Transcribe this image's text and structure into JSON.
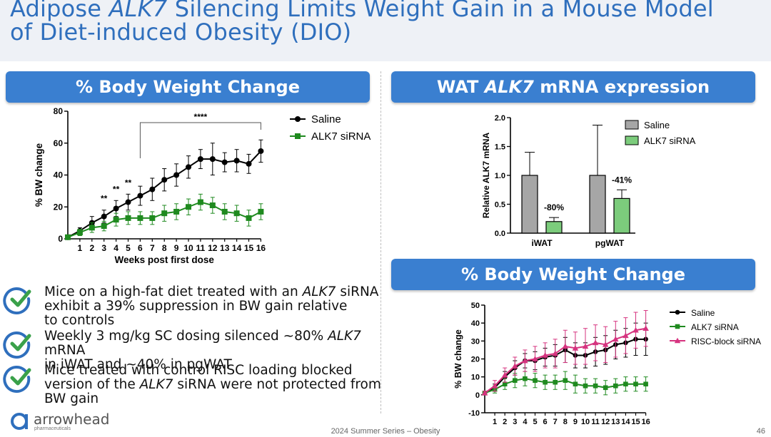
{
  "slide": {
    "title_part1": "Adipose ",
    "title_italic": "ALK7",
    "title_part2": " Silencing Limits Weight Gain in a Mouse Model",
    "title_line2": "of Diet-induced Obesity (DIO)",
    "footer": "2024 Summer Series – Obesity",
    "page_number": "46",
    "logo_text": "arrowhead",
    "logo_subtext": "pharmaceuticals",
    "accent_color": "#3a7fd0"
  },
  "banners": {
    "left": "% Body Weight Change",
    "right_top_part1": "WAT ",
    "right_top_italic": "ALK7",
    "right_top_part2": " mRNA expression",
    "right_bottom": "% Body Weight Change"
  },
  "bullets": [
    {
      "line1_part1": "Mice on a high-fat diet treated with an ",
      "line1_italic": "ALK7",
      "line1_part2": " siRNA",
      "line2": "exhibit a 39% suppression in BW gain relative",
      "line3": "to controls",
      "icon": "check-icon"
    },
    {
      "line1_part1": "Weekly 3 mg/kg SC dosing silenced ~80% ",
      "line1_italic": "ALK7",
      "line1_part2": " mRNA",
      "line2": "in iWAT and ~40% in pgWAT",
      "icon": "check-icon"
    },
    {
      "line1": "Mice treated with control RISC loading blocked",
      "line2_part1": "version of the ",
      "line2_italic": "ALK7",
      "line2_part2": " siRNA were not protected from",
      "line3": "BW gain",
      "icon": "check-icon"
    }
  ],
  "chart_data": [
    {
      "type": "line",
      "xlabel": "Weeks post first dose",
      "ylabel": "% BW change",
      "ylim": [
        0,
        80
      ],
      "yticks": [
        0,
        20,
        40,
        60,
        80
      ],
      "x": [
        0,
        1,
        2,
        3,
        4,
        5,
        6,
        7,
        8,
        9,
        10,
        11,
        12,
        13,
        14,
        15,
        16
      ],
      "xtick_labels": [
        "1",
        "2",
        "3",
        "4",
        "5",
        "6",
        "7",
        "8",
        "9",
        "10",
        "11",
        "12",
        "13",
        "14",
        "15",
        "16"
      ],
      "series": [
        {
          "name": "Saline",
          "color": "#000000",
          "marker": "circle",
          "values": [
            1,
            5,
            10,
            14,
            19,
            23,
            27,
            31,
            37,
            40,
            45,
            50,
            50,
            48,
            49,
            47,
            55
          ],
          "errors": [
            1,
            2,
            4,
            4,
            5,
            5,
            6,
            7,
            7,
            7,
            7,
            6,
            10,
            6,
            7,
            6,
            7
          ]
        },
        {
          "name": "ALK7 siRNA",
          "color": "#1f8a1f",
          "marker": "square",
          "values": [
            1,
            4,
            7,
            8,
            12,
            13,
            13,
            13,
            16,
            17,
            20,
            23,
            21,
            17,
            16,
            13,
            17
          ],
          "errors": [
            1,
            2,
            3,
            3,
            4,
            4,
            4,
            4,
            5,
            5,
            5,
            5,
            5,
            5,
            5,
            5,
            5
          ]
        }
      ],
      "annotations": [
        {
          "text": "**",
          "x": 3
        },
        {
          "text": "**",
          "x": 4
        },
        {
          "text": "**",
          "x": 5
        },
        {
          "text": "****",
          "x_from": 6,
          "x_to": 16
        }
      ],
      "legend": "top-right"
    },
    {
      "type": "bar",
      "categories": [
        "iWAT",
        "pgWAT"
      ],
      "ylabel": "Relative ALK7 mRNA",
      "ylim": [
        0,
        2.0
      ],
      "yticks": [
        "0.0",
        "0.5",
        "1.0",
        "1.5",
        "2.0"
      ],
      "series": [
        {
          "name": "Saline",
          "color": "#a6a6a6",
          "values": [
            1.0,
            1.0
          ],
          "errors": [
            0.4,
            0.87
          ]
        },
        {
          "name": "ALK7 siRNA",
          "color": "#7ccc7c",
          "values": [
            0.2,
            0.6
          ],
          "errors": [
            0.07,
            0.15
          ]
        }
      ],
      "bar_labels": [
        "-80%",
        "-41%"
      ],
      "legend": "top-right"
    },
    {
      "type": "line",
      "xlabel": "Weeks post first dose",
      "ylabel": "% BW change",
      "ylim": [
        -10,
        50
      ],
      "yticks": [
        -10,
        0,
        10,
        20,
        30,
        40,
        50
      ],
      "x": [
        0,
        1,
        2,
        3,
        4,
        5,
        6,
        7,
        8,
        9,
        10,
        11,
        12,
        13,
        14,
        15,
        16
      ],
      "xtick_labels": [
        "1",
        "2",
        "3",
        "4",
        "5",
        "6",
        "7",
        "8",
        "9",
        "10",
        "11",
        "12",
        "13",
        "14",
        "15",
        "16"
      ],
      "series": [
        {
          "name": "Saline",
          "color": "#000000",
          "marker": "circle",
          "values": [
            1,
            4,
            10,
            15,
            19,
            19,
            21,
            22,
            25,
            22,
            22,
            24,
            25,
            28,
            29,
            31,
            31
          ],
          "errors": [
            1,
            2,
            3,
            4,
            4,
            5,
            5,
            6,
            7,
            7,
            7,
            8,
            8,
            8,
            8,
            9,
            9
          ]
        },
        {
          "name": "ALK7 siRNA",
          "color": "#1f8a1f",
          "marker": "square",
          "values": [
            1,
            3,
            6,
            8,
            9,
            8,
            7,
            7,
            8,
            6,
            5,
            5,
            4,
            5,
            6,
            6,
            6
          ],
          "errors": [
            1,
            2,
            3,
            4,
            4,
            4,
            4,
            4,
            5,
            5,
            4,
            4,
            4,
            4,
            4,
            4,
            4
          ]
        },
        {
          "name": "RISC-block siRNA",
          "color": "#d6337f",
          "marker": "triangle",
          "values": [
            1,
            5,
            11,
            16,
            19,
            20,
            22,
            23,
            27,
            26,
            27,
            29,
            28,
            31,
            33,
            36,
            37
          ],
          "errors": [
            1,
            3,
            4,
            5,
            6,
            7,
            7,
            8,
            9,
            9,
            10,
            10,
            10,
            10,
            10,
            10,
            10
          ]
        }
      ],
      "legend": "top-right"
    }
  ]
}
